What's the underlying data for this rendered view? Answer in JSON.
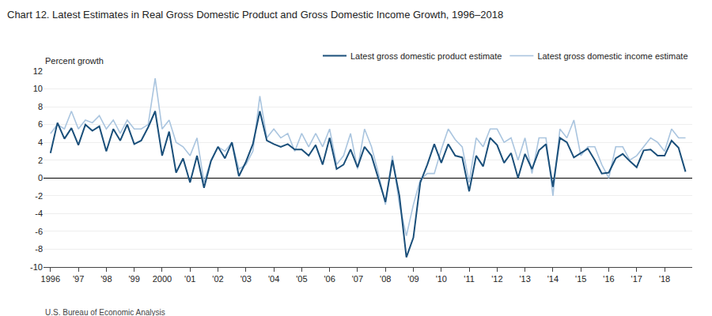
{
  "chart_data": {
    "type": "line",
    "title": "Chart 12. Latest Estimates in Real Gross Domestic Product and Gross Domestic Income Growth, 1996–2018",
    "ylabel": "Percent growth",
    "source": "U.S. Bureau of Economic Analysis",
    "x": [
      1996,
      1996.25,
      1996.5,
      1996.75,
      1997,
      1997.25,
      1997.5,
      1997.75,
      1998,
      1998.25,
      1998.5,
      1998.75,
      1999,
      1999.25,
      1999.5,
      1999.75,
      2000,
      2000.25,
      2000.5,
      2000.75,
      2001,
      2001.25,
      2001.5,
      2001.75,
      2002,
      2002.25,
      2002.5,
      2002.75,
      2003,
      2003.25,
      2003.5,
      2003.75,
      2004,
      2004.25,
      2004.5,
      2004.75,
      2005,
      2005.25,
      2005.5,
      2005.75,
      2006,
      2006.25,
      2006.5,
      2006.75,
      2007,
      2007.25,
      2007.5,
      2007.75,
      2008,
      2008.25,
      2008.5,
      2008.75,
      2009,
      2009.25,
      2009.5,
      2009.75,
      2010,
      2010.25,
      2010.5,
      2010.75,
      2011,
      2011.25,
      2011.5,
      2011.75,
      2012,
      2012.25,
      2012.5,
      2012.75,
      2013,
      2013.25,
      2013.5,
      2013.75,
      2014,
      2014.25,
      2014.5,
      2014.75,
      2015,
      2015.25,
      2015.5,
      2015.75,
      2016,
      2016.25,
      2016.5,
      2016.75,
      2017,
      2017.25,
      2017.5,
      2017.75,
      2018,
      2018.25,
      2018.5,
      2018.75
    ],
    "xlim": [
      1995.75,
      2018.99
    ],
    "xticks": [
      1996,
      {
        "value": 1997,
        "label": "'97"
      },
      {
        "value": 1998,
        "label": "'98"
      },
      {
        "value": 1999,
        "label": "'99"
      },
      2000,
      {
        "value": 2001,
        "label": "'01"
      },
      {
        "value": 2002,
        "label": "'02"
      },
      {
        "value": 2003,
        "label": "'03"
      },
      {
        "value": 2004,
        "label": "'04"
      },
      {
        "value": 2005,
        "label": "'05"
      },
      {
        "value": 2006,
        "label": "'06"
      },
      {
        "value": 2007,
        "label": "'07"
      },
      {
        "value": 2008,
        "label": "'08"
      },
      {
        "value": 2009,
        "label": "'09"
      },
      {
        "value": 2010,
        "label": "'10"
      },
      {
        "value": 2011,
        "label": "'11"
      },
      {
        "value": 2012,
        "label": "'12"
      },
      {
        "value": 2013,
        "label": "'13"
      },
      {
        "value": 2014,
        "label": "'14"
      },
      {
        "value": 2015,
        "label": "'15"
      },
      {
        "value": 2016,
        "label": "'16"
      },
      {
        "value": 2017,
        "label": "'17"
      },
      {
        "value": 2018,
        "label": "'18"
      }
    ],
    "ylim": [
      -10,
      12
    ],
    "yticks": [
      -10,
      -8,
      -6,
      -4,
      -2,
      0,
      2,
      4,
      6,
      8,
      10,
      12
    ],
    "grid": true,
    "legend": "top",
    "series": [
      {
        "name": "Latest gross domestic product estimate",
        "color": "#1a4f7a",
        "values": [
          2.8,
          6.2,
          4.4,
          5.6,
          3.7,
          6.0,
          5.3,
          5.8,
          3.0,
          5.5,
          4.2,
          6.0,
          3.8,
          4.2,
          5.7,
          7.5,
          2.5,
          5.2,
          0.6,
          2.2,
          -0.5,
          2.5,
          -1.1,
          1.9,
          3.5,
          2.2,
          4.0,
          0.2,
          1.8,
          3.8,
          7.5,
          4.2,
          3.8,
          3.5,
          3.8,
          3.2,
          3.2,
          2.5,
          3.7,
          1.5,
          4.5,
          1.0,
          1.5,
          3.2,
          1.2,
          3.5,
          2.5,
          -0.2,
          -2.7,
          2.0,
          -2.0,
          -8.9,
          -6.7,
          -0.5,
          1.5,
          3.8,
          1.7,
          3.8,
          2.5,
          2.3,
          -1.5,
          2.5,
          1.3,
          4.5,
          3.7,
          1.7,
          2.8,
          0.0,
          2.7,
          1.0,
          3.1,
          3.8,
          -1.0,
          4.5,
          4.0,
          2.3,
          2.8,
          3.3,
          2.0,
          0.5,
          0.6,
          2.2,
          2.7,
          1.9,
          1.2,
          3.1,
          3.2,
          2.5,
          2.5,
          4.2,
          3.4,
          0.7
        ]
      },
      {
        "name": "Latest gross domestic income estimate",
        "color": "#aac5df",
        "values": [
          5.0,
          6.0,
          5.5,
          7.5,
          5.5,
          6.5,
          6.2,
          7.0,
          5.5,
          6.5,
          5.0,
          6.5,
          5.5,
          5.5,
          6.0,
          11.2,
          5.5,
          6.5,
          4.0,
          3.5,
          2.5,
          4.5,
          -0.5,
          2.0,
          3.5,
          3.0,
          4.0,
          1.0,
          1.5,
          3.0,
          9.2,
          4.5,
          5.5,
          4.5,
          5.0,
          3.0,
          5.0,
          3.5,
          5.0,
          3.5,
          5.5,
          1.5,
          2.5,
          5.0,
          1.0,
          5.5,
          3.5,
          0.5,
          -3.0,
          2.5,
          -3.0,
          -6.5,
          -3.0,
          -0.2,
          0.5,
          0.5,
          3.2,
          5.5,
          4.3,
          3.5,
          -0.5,
          4.5,
          3.5,
          5.5,
          5.5,
          4.0,
          4.5,
          2.0,
          4.5,
          0.5,
          4.5,
          4.5,
          -2.0,
          5.5,
          4.5,
          6.5,
          2.5,
          3.5,
          3.5,
          1.5,
          0.0,
          3.5,
          3.5,
          2.0,
          2.5,
          3.5,
          4.5,
          4.0,
          3.0,
          5.5,
          4.5,
          4.5
        ]
      }
    ]
  }
}
